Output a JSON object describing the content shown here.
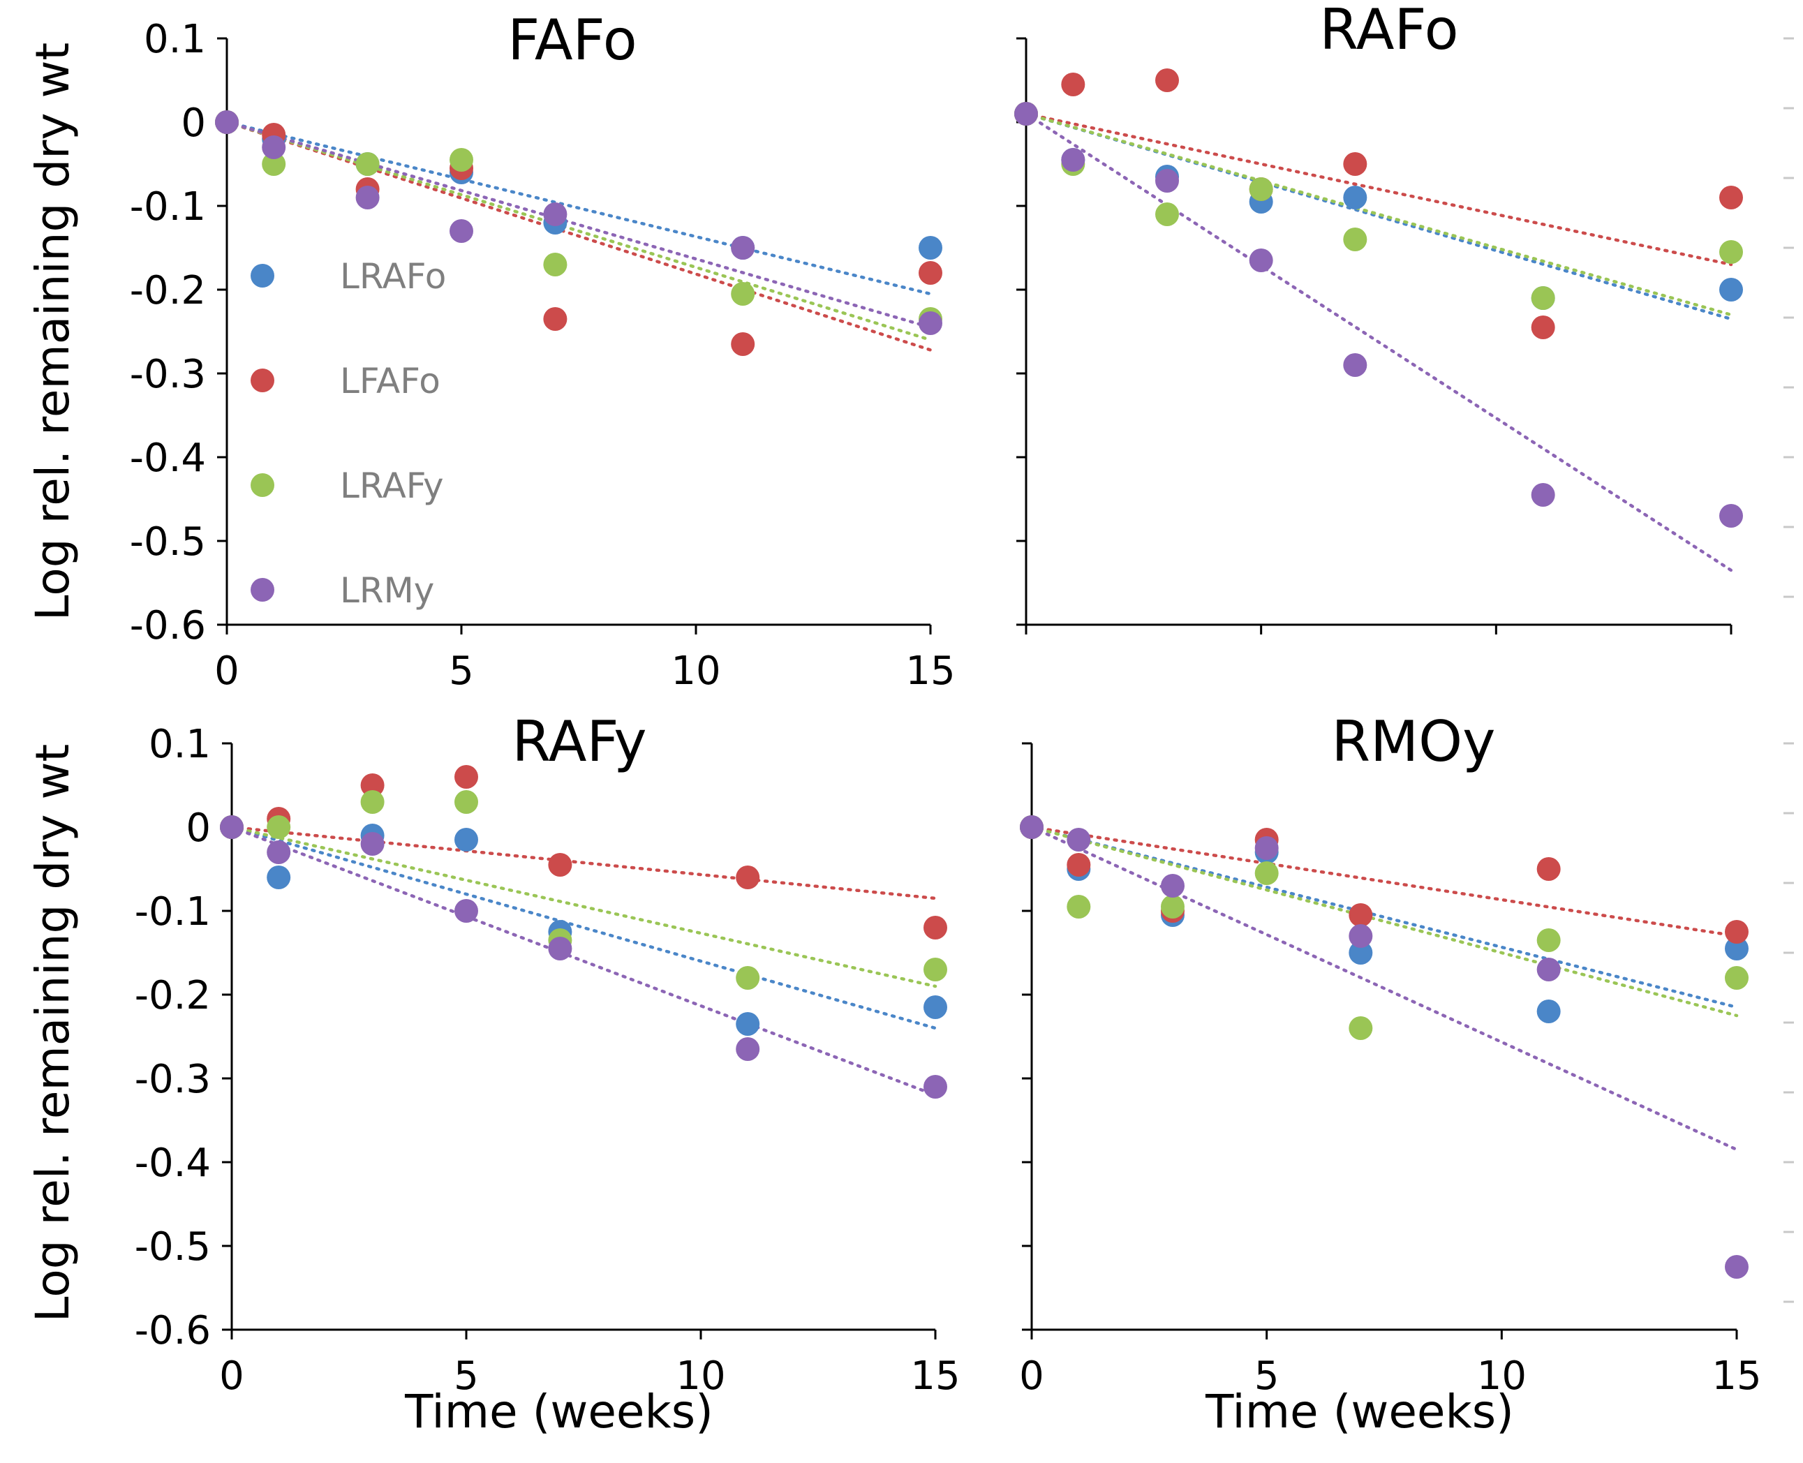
{
  "chart_data": [
    {
      "type": "scatter",
      "title": "FAFo",
      "xlabel": "",
      "ylabel": "Log rel. remaining dry wt",
      "xlim": [
        0,
        15
      ],
      "ylim": [
        -0.6,
        0.1
      ],
      "x_ticks": [
        "0",
        "5",
        "10",
        "15"
      ],
      "y_ticks": [
        "0.1",
        "0",
        "-0.1",
        "-0.2",
        "-0.3",
        "-0.4",
        "-0.5",
        "-0.6"
      ],
      "x": [
        0,
        1,
        3,
        5,
        7,
        11,
        15
      ],
      "series": [
        {
          "name": "LRAFo",
          "values": [
            0,
            -0.02,
            -0.05,
            -0.06,
            -0.12,
            -0.15,
            -0.15
          ],
          "trend_end": -0.205
        },
        {
          "name": "LFAFo",
          "values": [
            0,
            -0.015,
            -0.08,
            -0.055,
            -0.235,
            -0.265,
            -0.18
          ],
          "trend_end": -0.272
        },
        {
          "name": "LRAFy",
          "values": [
            0,
            -0.05,
            -0.05,
            -0.045,
            -0.17,
            -0.205,
            -0.235
          ],
          "trend_end": -0.26
        },
        {
          "name": "LRMy",
          "values": [
            0,
            -0.03,
            -0.09,
            -0.13,
            -0.11,
            -0.15,
            -0.24
          ],
          "trend_end": -0.245
        }
      ]
    },
    {
      "type": "scatter",
      "title": "RAFo",
      "xlabel": "",
      "ylabel": "",
      "xlim": [
        0,
        15
      ],
      "ylim": [
        -0.6,
        0.1
      ],
      "x_ticks": [
        "",
        "",
        "",
        ""
      ],
      "y_ticks": [
        "",
        "",
        "",
        "",
        "",
        "",
        "",
        ""
      ],
      "x": [
        0,
        1,
        3,
        5,
        7,
        11,
        15
      ],
      "series": [
        {
          "name": "LRAFo",
          "values": [
            0.01,
            -0.045,
            -0.065,
            -0.095,
            -0.09,
            -0.21,
            -0.2
          ],
          "trend_end": -0.235
        },
        {
          "name": "LFAFo",
          "values": [
            0.01,
            0.045,
            0.05,
            -0.08,
            -0.05,
            -0.245,
            -0.09
          ],
          "trend_end": -0.17
        },
        {
          "name": "LRAFy",
          "values": [
            0.01,
            -0.05,
            -0.11,
            -0.08,
            -0.14,
            -0.21,
            -0.155
          ],
          "trend_end": -0.23
        },
        {
          "name": "LRMy",
          "values": [
            0.01,
            -0.045,
            -0.07,
            -0.165,
            -0.29,
            -0.445,
            -0.47
          ],
          "trend_end": -0.535
        }
      ]
    },
    {
      "type": "scatter",
      "title": "RAFy",
      "xlabel": "Time (weeks)",
      "ylabel": "Log rel. remaining dry wt",
      "xlim": [
        0,
        15
      ],
      "ylim": [
        -0.6,
        0.1
      ],
      "x_ticks": [
        "0",
        "5",
        "10",
        "15"
      ],
      "y_ticks": [
        "0.1",
        "0",
        "-0.1",
        "-0.2",
        "-0.3",
        "-0.4",
        "-0.5",
        "-0.6"
      ],
      "x": [
        0,
        1,
        3,
        5,
        7,
        11,
        15
      ],
      "series": [
        {
          "name": "LRAFo",
          "values": [
            0,
            -0.06,
            -0.01,
            -0.015,
            -0.125,
            -0.235,
            -0.215
          ],
          "trend_end": -0.24
        },
        {
          "name": "LFAFo",
          "values": [
            0,
            0.01,
            0.05,
            0.06,
            -0.045,
            -0.06,
            -0.12
          ],
          "trend_end": -0.085
        },
        {
          "name": "LRAFy",
          "values": [
            0,
            0,
            0.03,
            0.03,
            -0.135,
            -0.18,
            -0.17
          ],
          "trend_end": -0.19
        },
        {
          "name": "LRMy",
          "values": [
            0,
            -0.03,
            -0.02,
            -0.1,
            -0.145,
            -0.265,
            -0.31
          ],
          "trend_end": -0.32
        }
      ]
    },
    {
      "type": "scatter",
      "title": "RMOy",
      "xlabel": "Time (weeks)",
      "ylabel": "",
      "xlim": [
        0,
        15
      ],
      "ylim": [
        -0.6,
        0.1
      ],
      "x_ticks": [
        "0",
        "5",
        "10",
        "15"
      ],
      "y_ticks": [
        "",
        "",
        "",
        "",
        "",
        "",
        "",
        ""
      ],
      "x": [
        0,
        1,
        3,
        5,
        7,
        11,
        15
      ],
      "series": [
        {
          "name": "LRAFo",
          "values": [
            0,
            -0.05,
            -0.105,
            -0.03,
            -0.15,
            -0.22,
            -0.145
          ],
          "trend_end": -0.215
        },
        {
          "name": "LFAFo",
          "values": [
            0,
            -0.045,
            -0.1,
            -0.015,
            -0.105,
            -0.05,
            -0.125
          ],
          "trend_end": -0.13
        },
        {
          "name": "LRAFy",
          "values": [
            0,
            -0.095,
            -0.095,
            -0.055,
            -0.24,
            -0.135,
            -0.18
          ],
          "trend_end": -0.225
        },
        {
          "name": "LRMy",
          "values": [
            0,
            -0.015,
            -0.07,
            -0.025,
            -0.13,
            -0.17,
            -0.525
          ],
          "trend_end": -0.385
        }
      ]
    }
  ],
  "legend": {
    "placement": "inside top-left panel, left side",
    "items": [
      {
        "label": "LRAFo",
        "color": "#4a86c8"
      },
      {
        "label": "LFAFo",
        "color": "#cc4b4b"
      },
      {
        "label": "LRAFy",
        "color": "#9ac555"
      },
      {
        "label": "LRMy",
        "color": "#8c65b5"
      }
    ]
  },
  "colors": {
    "LRAFo": "#4a86c8",
    "LFAFo": "#cc4b4b",
    "LRAFy": "#9ac555",
    "LRMy": "#8c65b5"
  }
}
